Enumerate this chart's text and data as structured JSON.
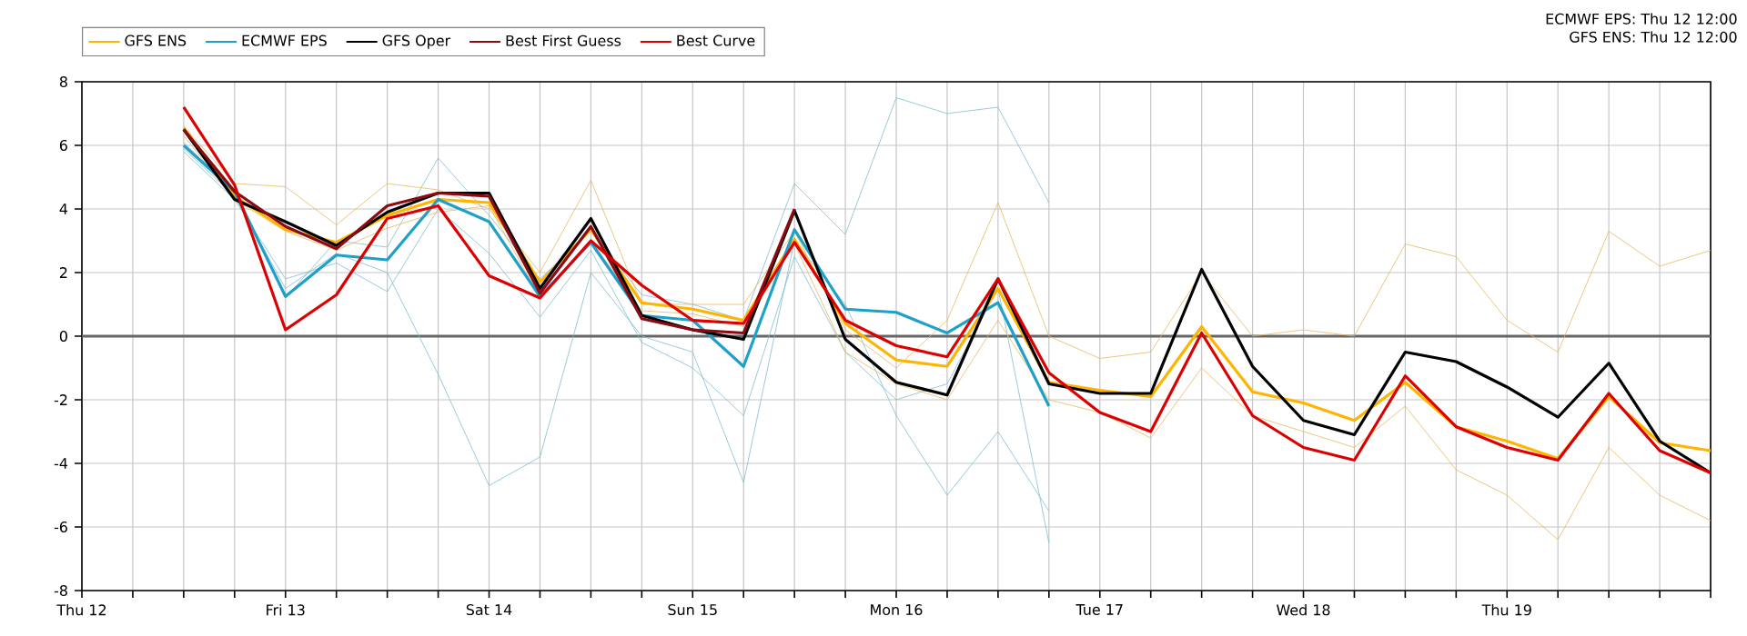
{
  "chart_data": {
    "type": "line",
    "annotations": [
      "ECMWF EPS: Thu 12 12:00",
      "GFS ENS: Thu 12 12:00"
    ],
    "categories": [
      "Thu 12",
      null,
      null,
      null,
      "Fri 13",
      null,
      null,
      null,
      "Sat 14",
      null,
      null,
      null,
      "Sun 15",
      null,
      null,
      null,
      "Mon 16",
      null,
      null,
      null,
      "Tue 17",
      null,
      null,
      null,
      "Wed 18",
      null,
      null,
      null,
      "Thu 19",
      null,
      null,
      null,
      null
    ],
    "ylim": [
      -8,
      8
    ],
    "yticks": [
      -8,
      -6,
      -4,
      -2,
      0,
      2,
      4,
      6,
      8
    ],
    "grid": true,
    "legend": "top left",
    "marker": "none",
    "line_style": "solid",
    "ref_lines": [
      {
        "axis": "y",
        "value": 0,
        "color": "#666666"
      }
    ],
    "series": [
      {
        "color": "#7fbcd2",
        "values": [
          null,
          null,
          5.9,
          4.4,
          1.5,
          2.6,
          2.0,
          -1.2,
          -4.7,
          -3.8,
          2.0,
          0.0,
          -0.5,
          -4.6,
          3.0,
          1.0,
          -2.5,
          -5.0,
          -3.0,
          -5.5,
          null,
          null,
          null,
          null,
          null,
          null,
          null,
          null,
          null,
          null,
          null,
          null,
          null
        ]
      },
      {
        "color": "#7fbcd2",
        "values": [
          null,
          null,
          6.1,
          4.5,
          1.2,
          3.0,
          2.8,
          5.6,
          3.8,
          1.8,
          3.3,
          1.3,
          1.0,
          0.5,
          4.8,
          3.2,
          7.5,
          7.0,
          7.2,
          4.2,
          null,
          null,
          null,
          null,
          null,
          null,
          null,
          null,
          null,
          null,
          null,
          null,
          null
        ]
      },
      {
        "color": "#7fbcd2",
        "values": [
          null,
          null,
          5.8,
          4.3,
          1.8,
          2.3,
          1.4,
          4.0,
          2.6,
          0.6,
          2.7,
          -0.2,
          -1.0,
          -2.5,
          2.5,
          -0.5,
          -2.0,
          -1.5,
          1.5,
          -6.5,
          null,
          null,
          null,
          null,
          null,
          null,
          null,
          null,
          null,
          null,
          null,
          null,
          null
        ]
      },
      {
        "color": "#e8b860",
        "values": [
          null,
          null,
          6.6,
          4.8,
          4.7,
          3.5,
          4.8,
          4.6,
          4.0,
          2.0,
          4.9,
          1.0,
          1.0,
          1.0,
          3.3,
          0.2,
          -1.0,
          0.5,
          4.2,
          0.0,
          -0.7,
          -0.5,
          2.0,
          0.0,
          0.2,
          0.0,
          2.9,
          2.5,
          0.5,
          -0.5,
          3.3,
          2.2,
          2.7
        ]
      },
      {
        "color": "#e8b860",
        "values": [
          null,
          null,
          6.3,
          4.3,
          3.3,
          2.7,
          3.4,
          3.9,
          4.1,
          1.2,
          3.0,
          0.8,
          0.7,
          0.3,
          2.9,
          -0.5,
          -1.5,
          -2.0,
          0.5,
          -2.0,
          -2.4,
          -3.2,
          -1.0,
          -2.5,
          -3.0,
          -3.5,
          -2.2,
          -4.2,
          -5.0,
          -6.4,
          -3.5,
          -5.0,
          -5.8
        ]
      },
      {
        "name": "GFS ENS",
        "color": "#ffb400",
        "values": [
          null,
          null,
          6.55,
          4.4,
          3.35,
          2.95,
          3.8,
          4.3,
          4.2,
          1.7,
          3.35,
          1.05,
          0.85,
          0.5,
          3.05,
          0.4,
          -0.75,
          -0.95,
          1.5,
          -1.45,
          -1.7,
          -1.9,
          0.3,
          -1.75,
          -2.1,
          -2.65,
          -1.45,
          -2.85,
          -3.3,
          -3.85,
          -1.9,
          -3.35,
          -3.6
        ]
      },
      {
        "name": "ECMWF EPS",
        "color": "#1ea0c8",
        "values": [
          null,
          null,
          6.0,
          4.55,
          1.25,
          2.55,
          2.4,
          4.3,
          3.6,
          1.25,
          2.95,
          0.65,
          0.5,
          -0.95,
          3.35,
          0.85,
          0.75,
          0.1,
          1.05,
          -2.2,
          null,
          null,
          null,
          null,
          null,
          null,
          null,
          null,
          null,
          null,
          null,
          null,
          null
        ]
      },
      {
        "name": "GFS Oper",
        "color": "#000000",
        "values": [
          null,
          null,
          6.5,
          4.3,
          3.6,
          2.85,
          3.9,
          4.5,
          4.5,
          1.5,
          3.7,
          0.65,
          0.2,
          -0.1,
          3.95,
          -0.1,
          -1.45,
          -1.85,
          1.8,
          -1.5,
          -1.8,
          -1.8,
          2.1,
          -0.95,
          -2.65,
          -3.1,
          -0.5,
          -0.8,
          -1.6,
          -2.55,
          -0.85,
          -3.3,
          -4.3
        ]
      },
      {
        "name": "Best First Guess",
        "color": "#8b0a14",
        "values": [
          null,
          null,
          6.5,
          4.55,
          3.45,
          2.75,
          4.1,
          4.5,
          4.4,
          1.35,
          3.45,
          0.55,
          0.2,
          0.1,
          4.0,
          null,
          null,
          null,
          null,
          null,
          null,
          null,
          null,
          null,
          null,
          null,
          null,
          null,
          null,
          null,
          null,
          null,
          null
        ]
      },
      {
        "name": "Best Curve",
        "color": "#dc0000",
        "values": [
          null,
          null,
          7.2,
          4.75,
          0.2,
          1.3,
          3.7,
          4.1,
          1.9,
          1.2,
          3.0,
          1.6,
          0.5,
          0.4,
          2.95,
          0.5,
          -0.3,
          -0.65,
          1.8,
          -1.15,
          -2.4,
          -3.0,
          0.1,
          -2.5,
          -3.5,
          -3.9,
          -1.25,
          -2.85,
          -3.5,
          -3.9,
          -1.8,
          -3.6,
          -4.3
        ]
      }
    ]
  }
}
